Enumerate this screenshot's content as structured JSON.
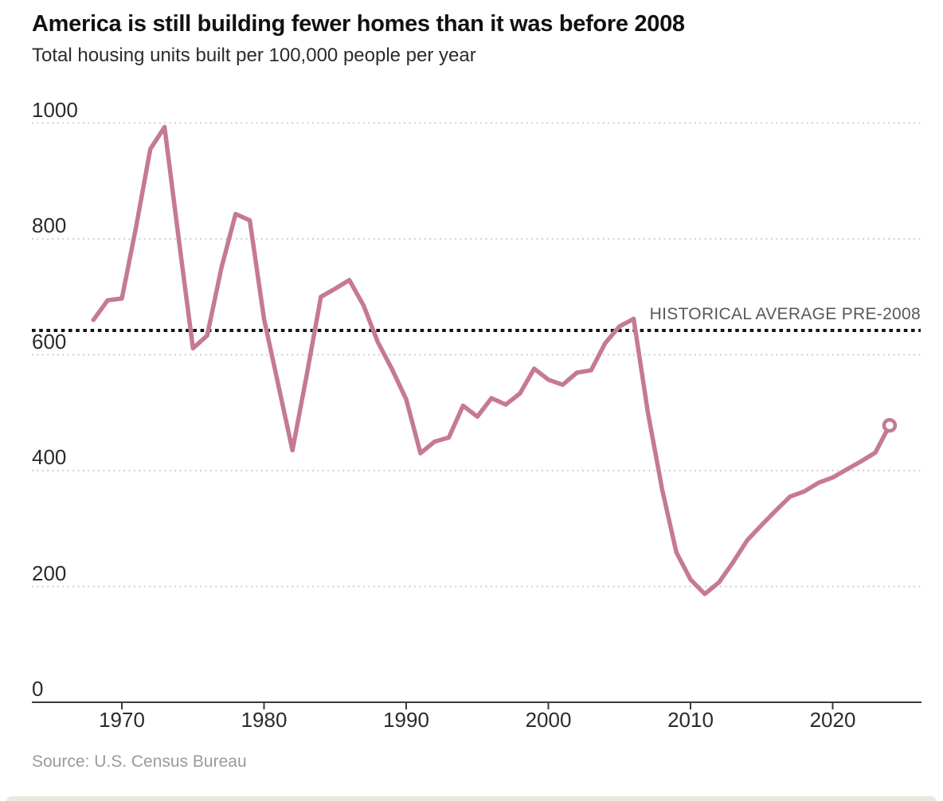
{
  "header": {
    "title": "America is still building fewer homes than it was before 2008",
    "subtitle": "Total housing units built per 100,000 people per year"
  },
  "chart_data": {
    "type": "line",
    "title": "America is still building fewer homes than it was before 2008",
    "subtitle": "Total housing units built per 100,000 people per year",
    "x": [
      1968,
      1969,
      1970,
      1971,
      1972,
      1973,
      1974,
      1975,
      1976,
      1977,
      1978,
      1979,
      1980,
      1981,
      1982,
      1983,
      1984,
      1985,
      1986,
      1987,
      1988,
      1989,
      1990,
      1991,
      1992,
      1993,
      1994,
      1995,
      1996,
      1997,
      1998,
      1999,
      2000,
      2001,
      2002,
      2003,
      2004,
      2005,
      2006,
      2007,
      2008,
      2009,
      2010,
      2011,
      2012,
      2013,
      2014,
      2015,
      2016,
      2017,
      2018,
      2019,
      2020,
      2021,
      2022,
      2023,
      2024
    ],
    "values": [
      660,
      694,
      697,
      820,
      955,
      993,
      800,
      611,
      633,
      750,
      843,
      832,
      662,
      548,
      435,
      565,
      700,
      714,
      729,
      685,
      622,
      575,
      523,
      430,
      450,
      457,
      512,
      493,
      525,
      514,
      533,
      576,
      557,
      548,
      569,
      573,
      620,
      649,
      662,
      500,
      368,
      259,
      212,
      187,
      207,
      242,
      280,
      306,
      331,
      355,
      364,
      379,
      388,
      402,
      416,
      431,
      478
    ],
    "series_name": "Total housing units built per 100,000 people per year",
    "xlabel": "",
    "ylabel": "",
    "ylim": [
      0,
      1000
    ],
    "xlim": [
      1966.7,
      2026.2
    ],
    "y_ticks": [
      1000,
      800,
      600,
      400,
      200,
      0
    ],
    "x_ticks": [
      1970,
      1980,
      1990,
      2000,
      2010,
      2020
    ],
    "grid": "horizontal dotted",
    "legend_position": "none",
    "annotation": {
      "label": "HISTORICAL AVERAGE PRE-2008",
      "value": 642
    },
    "last_point": {
      "x": 2024,
      "value": 478,
      "marker": "open-circle"
    },
    "colors": {
      "line": "#c57a92",
      "grid": "#bcbcbc",
      "average_line": "#141414",
      "axis": "#3a3a3a",
      "tick_text": "#2b2b2b",
      "annotation_text": "#57585a",
      "source_text": "#9a9a9a",
      "bottom_bar": "#ebe8e0"
    }
  },
  "footer": {
    "source": "Source: U.S. Census Bureau"
  }
}
